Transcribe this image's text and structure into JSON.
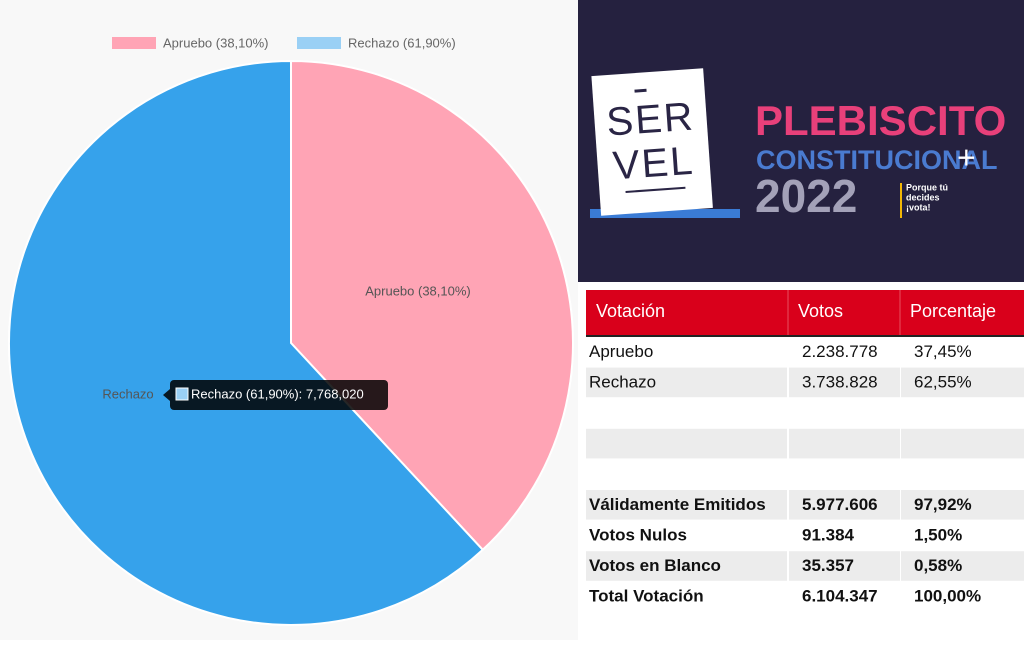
{
  "chart_data": {
    "type": "pie",
    "categories": [
      "Apruebo (38,10%)",
      "Rechazo (61,90%)"
    ],
    "values": [
      4781285,
      7768020
    ],
    "colors": [
      "#ffa4b5",
      "#36a2eb"
    ],
    "legend_colors": [
      "#ffa4b5",
      "#9ad0f5"
    ],
    "slice_labels": [
      "Apruebo (38,10%)",
      "Rechazo"
    ],
    "tooltip": "Rechazo (61,90%): 7,768,020",
    "legend": "top"
  },
  "banner": {
    "logo_top": "SER",
    "logo_bottom": "VEL",
    "title": "PLEBISCITO",
    "subtitle": "CONSTITUCIONAL",
    "plus": "+",
    "year": "2022",
    "slogan": [
      "Porque tú",
      "decides",
      "¡vota!"
    ]
  },
  "table": {
    "header": [
      "Votación",
      "Votos",
      "Porcentaje"
    ],
    "rows": [
      [
        "Apruebo",
        "2.238.778",
        "37,45%"
      ],
      [
        "Rechazo",
        "3.738.828",
        "62,55%"
      ],
      [
        "Válidamente Emitidos",
        "5.977.606",
        "97,92%"
      ],
      [
        "Votos Nulos",
        "91.384",
        "1,50%"
      ],
      [
        "Votos en Blanco",
        "35.357",
        "0,58%"
      ],
      [
        "Total Votación",
        "6.104.347",
        "100,00%"
      ]
    ]
  }
}
